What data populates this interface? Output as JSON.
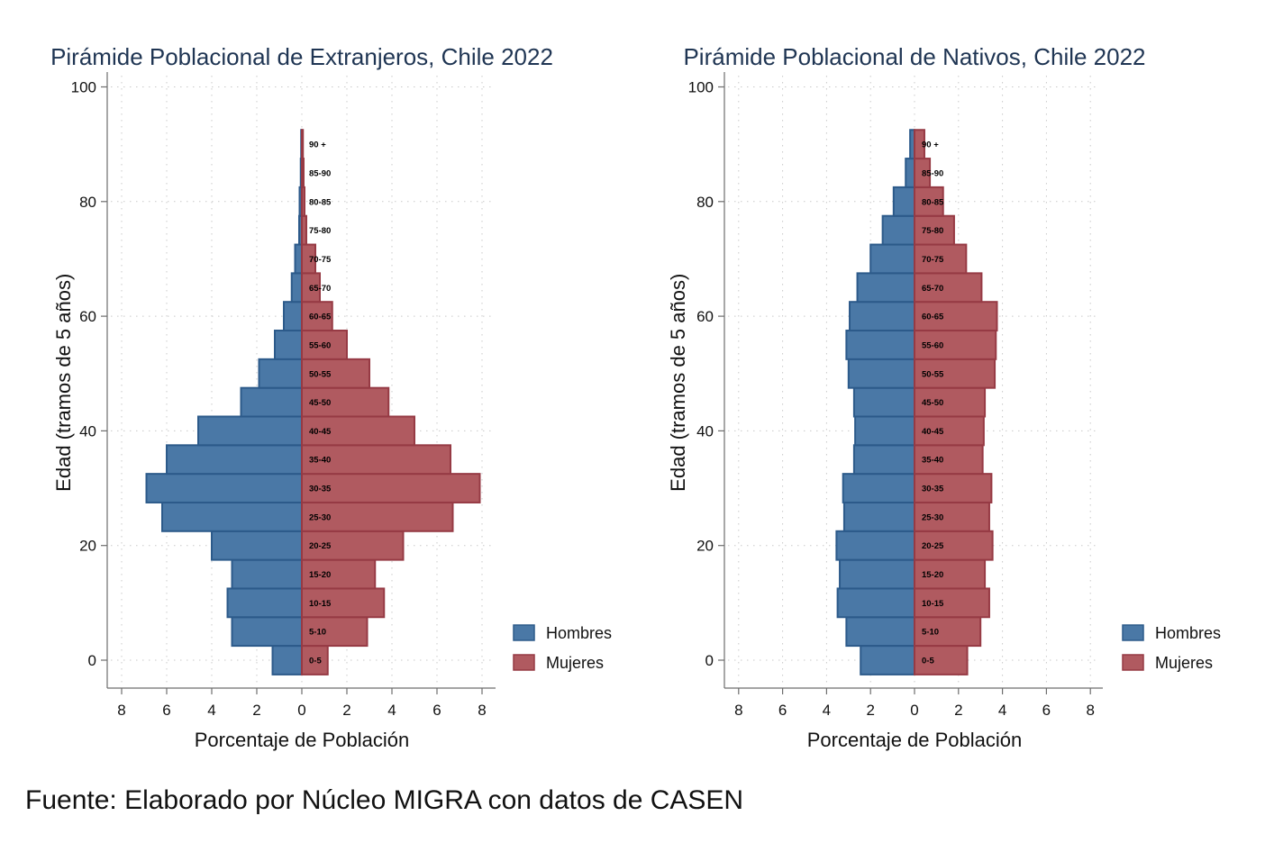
{
  "source_note": "Fuente: Elaborado por Núcleo MIGRA con datos de CASEN",
  "colors": {
    "hombres_fill": "#4a78a6",
    "hombres_stroke": "#2c5a8a",
    "mujeres_fill": "#b05a60",
    "mujeres_stroke": "#963a44",
    "title": "#1f3553"
  },
  "chart_data": [
    {
      "type": "bar",
      "orientation": "horizontal-pyramid",
      "title": "Pirámide Poblacional de Extranjeros, Chile 2022",
      "xlabel": "Porcentaje de Población",
      "ylabel": "Edad (tramos de 5 años)",
      "xlim": [
        -8,
        8
      ],
      "xticks": [
        -8,
        -6,
        -4,
        -2,
        0,
        2,
        4,
        6,
        8
      ],
      "xtick_labels": [
        "8",
        "6",
        "4",
        "2",
        "0",
        "2",
        "4",
        "6",
        "8"
      ],
      "ylim": [
        -5,
        105
      ],
      "yticks": [
        0,
        20,
        40,
        60,
        80,
        100
      ],
      "grid": true,
      "legend_position": "bottom-right",
      "categories": [
        "0-5",
        "5-10",
        "10-15",
        "15-20",
        "20-25",
        "25-30",
        "30-35",
        "35-40",
        "40-45",
        "45-50",
        "50-55",
        "55-60",
        "60-65",
        "65-70",
        "70-75",
        "75-80",
        "80-85",
        "85-90",
        "90 +"
      ],
      "series": [
        {
          "name": "Hombres",
          "values": [
            1.3,
            3.1,
            3.3,
            3.1,
            4.0,
            6.2,
            6.9,
            6.0,
            4.6,
            2.7,
            1.9,
            1.2,
            0.8,
            0.45,
            0.3,
            0.12,
            0.1,
            0.05,
            0.03
          ]
        },
        {
          "name": "Mujeres",
          "values": [
            1.15,
            2.9,
            3.65,
            3.25,
            4.5,
            6.7,
            7.9,
            6.6,
            5.0,
            3.85,
            3.0,
            2.0,
            1.35,
            0.8,
            0.6,
            0.2,
            0.12,
            0.08,
            0.05
          ]
        }
      ]
    },
    {
      "type": "bar",
      "orientation": "horizontal-pyramid",
      "title": "Pirámide Poblacional de Nativos, Chile 2022",
      "xlabel": "Porcentaje de Población",
      "ylabel": "Edad (tramos de 5 años)",
      "xlim": [
        -8,
        8
      ],
      "xticks": [
        -8,
        -6,
        -4,
        -2,
        0,
        2,
        4,
        6,
        8
      ],
      "xtick_labels": [
        "8",
        "6",
        "4",
        "2",
        "0",
        "2",
        "4",
        "6",
        "8"
      ],
      "ylim": [
        -5,
        105
      ],
      "yticks": [
        0,
        20,
        40,
        60,
        80,
        100
      ],
      "grid": true,
      "legend_position": "bottom-right",
      "categories": [
        "0-5",
        "5-10",
        "10-15",
        "15-20",
        "20-25",
        "25-30",
        "30-35",
        "35-40",
        "40-45",
        "45-50",
        "50-55",
        "55-60",
        "60-65",
        "65-70",
        "70-75",
        "75-80",
        "80-85",
        "85-90",
        "90 +"
      ],
      "series": [
        {
          "name": "Hombres",
          "values": [
            2.45,
            3.1,
            3.5,
            3.4,
            3.55,
            3.2,
            3.25,
            2.75,
            2.7,
            2.75,
            3.0,
            3.1,
            2.95,
            2.6,
            2.0,
            1.45,
            0.95,
            0.4,
            0.2
          ]
        },
        {
          "name": "Mujeres",
          "values": [
            2.4,
            3.0,
            3.4,
            3.2,
            3.55,
            3.4,
            3.5,
            3.1,
            3.15,
            3.2,
            3.65,
            3.7,
            3.75,
            3.05,
            2.35,
            1.8,
            1.3,
            0.7,
            0.45
          ]
        }
      ]
    }
  ]
}
